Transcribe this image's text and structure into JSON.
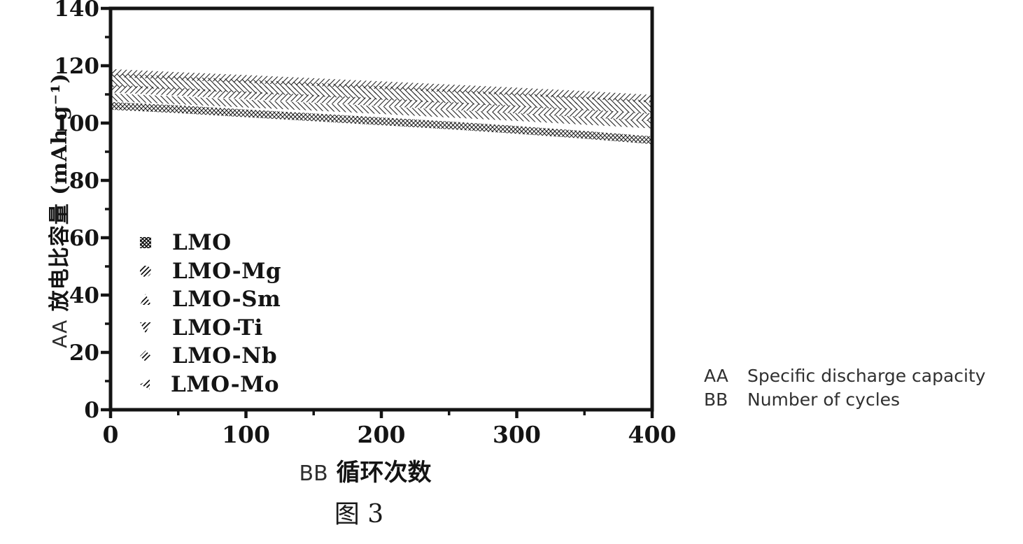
{
  "figure": {
    "caption": "图 3"
  },
  "annotations": [
    {
      "key": "AA",
      "text": "Specific discharge capacity"
    },
    {
      "key": "BB",
      "text": "Number of cycles"
    }
  ],
  "colors": {
    "ink": "#141414",
    "annotation": "#303030"
  },
  "chart_data": {
    "type": "scatter",
    "title": "",
    "ylabel_key": "AA",
    "ylabel_text": "放电比容量 (mAh g⁻¹)",
    "xlabel_key": "BB",
    "xlabel_text": "循环次数",
    "xlim": [
      0,
      400
    ],
    "ylim": [
      0,
      140
    ],
    "xticks": [
      0,
      100,
      200,
      300,
      400
    ],
    "yticks": [
      0,
      20,
      40,
      60,
      80,
      100,
      120,
      140
    ],
    "grid": false,
    "legend_position": "inside-left",
    "x": [
      0,
      50,
      100,
      150,
      200,
      250,
      300,
      350,
      400
    ],
    "series": [
      {
        "name": "LMO",
        "marker": "square",
        "hatch": "cross",
        "values": [
          106,
          104.8,
          103.4,
          102,
          100.6,
          99.2,
          97.6,
          95.9,
          94
        ]
      },
      {
        "name": "LMO-Mg",
        "marker": "circle",
        "hatch": "backslash",
        "values": [
          116,
          114.9,
          113.8,
          112.7,
          111.5,
          110.3,
          109.1,
          107.8,
          106.5
        ]
      },
      {
        "name": "LMO-Sm",
        "marker": "triangle-up",
        "hatch": "slash",
        "values": [
          117.5,
          116.4,
          115.4,
          114.3,
          113.2,
          112.1,
          111,
          109.8,
          108.5
        ]
      },
      {
        "name": "LMO-Ti",
        "marker": "triangle-down",
        "hatch": "backslash",
        "values": [
          114,
          112.9,
          111.8,
          110.7,
          109.5,
          108.3,
          107.1,
          105.8,
          104.5
        ]
      },
      {
        "name": "LMO-Nb",
        "marker": "diamond",
        "hatch": "slash",
        "values": [
          112,
          110.9,
          109.7,
          108.5,
          107.3,
          106,
          104.7,
          103.4,
          102
        ]
      },
      {
        "name": "LMO-Mo",
        "marker": "triangle-left",
        "hatch": "backslash",
        "values": [
          109,
          107.9,
          106.8,
          105.7,
          104.5,
          103.3,
          102.1,
          100.8,
          99.5
        ]
      }
    ]
  }
}
